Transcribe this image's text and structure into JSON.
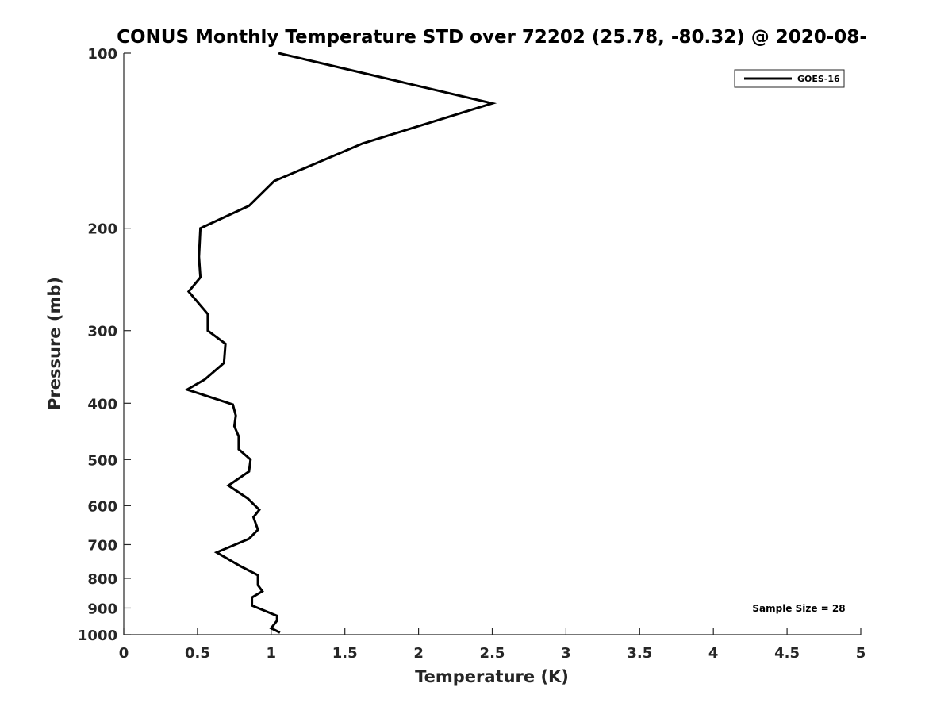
{
  "chart_data": {
    "type": "line",
    "title": "CONUS Monthly Temperature STD over 72202 (25.78, -80.32) @ 2020-08-",
    "xlabel": "Temperature (K)",
    "ylabel": "Pressure (mb)",
    "xlim": [
      0,
      5
    ],
    "ylim": [
      1000,
      100
    ],
    "yscale": "log",
    "y_reversed": true,
    "grid": false,
    "legend_position": "top-right",
    "x_ticks": [
      0,
      0.5,
      1,
      1.5,
      2,
      2.5,
      3,
      3.5,
      4,
      4.5,
      5
    ],
    "x_tick_labels": [
      "0",
      "0.5",
      "1",
      "1.5",
      "2",
      "2.5",
      "3",
      "3.5",
      "4",
      "4.5",
      "5"
    ],
    "y_ticks": [
      100,
      200,
      300,
      400,
      500,
      600,
      700,
      800,
      900,
      1000
    ],
    "y_tick_labels": [
      "100",
      "200",
      "300",
      "400",
      "500",
      "600",
      "700",
      "800",
      "900",
      "1000"
    ],
    "series": [
      {
        "name": "GOES-16",
        "color": "#000000",
        "x": [
          1.05,
          2.5,
          1.62,
          1.02,
          0.85,
          0.52,
          0.51,
          0.52,
          0.44,
          0.57,
          0.57,
          0.69,
          0.68,
          0.55,
          0.43,
          0.74,
          0.76,
          0.75,
          0.78,
          0.78,
          0.86,
          0.85,
          0.71,
          0.84,
          0.92,
          0.88,
          0.91,
          0.85,
          0.63,
          0.79,
          0.91,
          0.91,
          0.94,
          0.87,
          0.87,
          1.04,
          1.04,
          1.0,
          1.06
        ],
        "y": [
          100,
          122,
          143,
          166,
          183,
          200,
          224,
          243,
          257,
          281,
          300,
          316,
          341,
          364,
          379,
          402,
          420,
          438,
          456,
          480,
          500,
          524,
          554,
          583,
          610,
          628,
          660,
          684,
          722,
          762,
          790,
          822,
          842,
          863,
          891,
          928,
          946,
          975,
          992
        ]
      }
    ],
    "annotations": [
      "Sample Size = 28"
    ]
  }
}
